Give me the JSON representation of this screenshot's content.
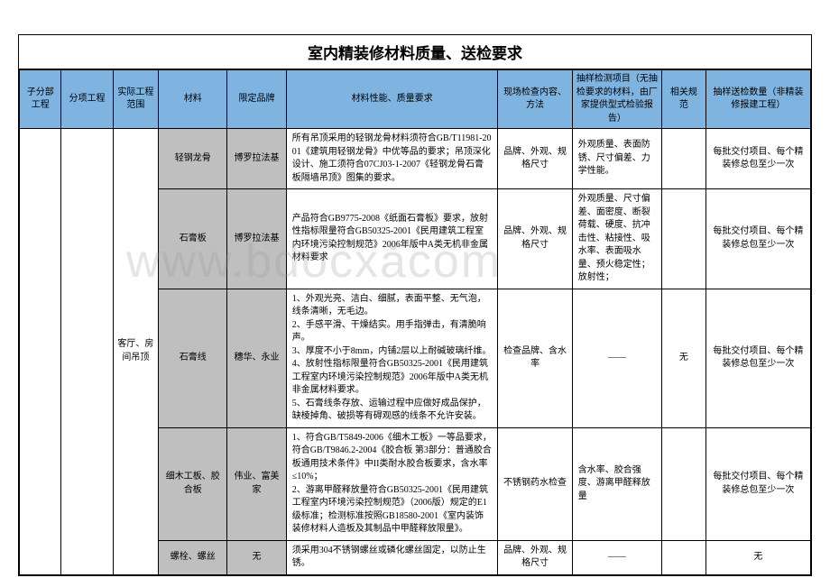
{
  "title": "室内精装修材料质量、送检要求",
  "headers": {
    "c1": "子分部工程",
    "c2": "分项工程",
    "c3": "实际工程范围",
    "c4": "材料",
    "c5": "限定品牌",
    "c6": "材料性能、质量要求",
    "c7": "现场检查内容、方法",
    "c8": "抽样检测项目（无抽检要求的材料，由厂家提供型式检验报告）",
    "c9": "相关规范",
    "c10": "抽样送检数量（非精装修报建工程）"
  },
  "scope": "客厅、房间吊顶",
  "rows": {
    "r1": {
      "material": "轻钢龙骨",
      "brand": "博罗拉法基",
      "req": "所有吊顶采用的轻钢龙骨材料须符合GB/T11981-2001《建筑用轻钢龙骨》中优等品的要求；吊顶深化设计、施工须符合07CJ03-1-2007《轻钢龙骨石膏板隔墙吊顶》图集的要求。",
      "inspect": "品牌、外观、规格尺寸",
      "test": "外观质量、表面防锈、尺寸偏差、力学性能。",
      "spec": "",
      "qty": "每批交付项目、每个精装修总包至少一次"
    },
    "r2": {
      "material": "石膏板",
      "brand": "博罗拉法基",
      "req": "产品符合GB9775-2008《纸面石膏板》要求，放射性指标限量符合GB50325-2001《民用建筑工程室内环境污染控制规范》2006年版中A类无机非金属材料要求",
      "inspect": "品牌、外观、规格尺寸",
      "test": "外观质量、尺寸偏差、面密度、断裂荷载、硬度、抗冲击性、粘接性、吸水率、表面吸水量、预火稳定性；放射性；",
      "spec": "",
      "qty": "每批交付项目、每个精装修总包至少一次"
    },
    "r3": {
      "material": "石膏线",
      "brand": "穗华、永业",
      "req": "1、外观光亮、洁白、细腻，表面平整、无气泡，线条清晰，无毛边。\n2、手感平滑、干燥结实。用手指弹击，有清脆响声。\n3、厚度不小于8mm，内铺2层以上耐碱玻璃纤维。\n4、放射性指标限量符合GB50325-2001《民用建筑工程室内环境污染控制规范》2006年版中A类无机非金属材料要求。\n5、石膏线条存放、运输过程中应做好成品保护，缺棱掉角、破损等有碍观感的线条不允许安装。",
      "inspect": "检查品牌、含水率",
      "test": "——",
      "spec": "无",
      "qty": "每批交付项目、每个精装修总包至少一次"
    },
    "r4": {
      "material": "细木工板、胶合板",
      "brand": "伟业、富美家",
      "req": "1、符合GB/T5849-2006《细木工板》一等品要求，符合GB/T9846.2-2004《胶合板 第3部分：普通胶合板通用技术条件》中II类耐水胶合板要求，含水率≤10%；\n2、游离甲醛释放量符合GB50325-2001《民用建筑工程室内环境污染控制规范》（2006版）规定的E1级标准；检测标准按照GB18580-2001《室内装饰装修材料人造板及其制品中甲醛释放限量》。",
      "inspect": "不锈钢药水检查",
      "test": "含水率、胶合强度、游离甲醛释放量",
      "spec": "",
      "qty": "每批交付项目、每个精装修总包至少一次"
    },
    "r5": {
      "material": "螺栓、螺丝",
      "brand": "无",
      "req": "须采用304不锈钢螺丝或磷化螺丝固定，以防止生锈。",
      "inspect": "品牌、外观、规格尺寸",
      "test": "——",
      "spec": "",
      "qty": "无"
    }
  },
  "watermark": {
    "a": "www.bdocx",
    "b": "ǎ",
    "c": "com"
  }
}
